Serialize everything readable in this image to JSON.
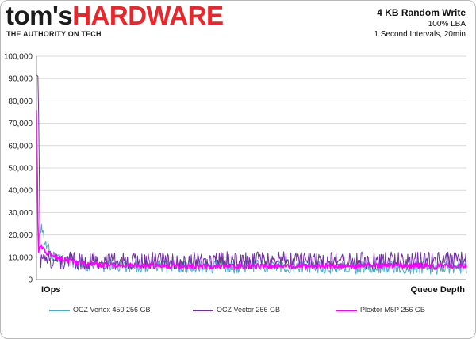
{
  "header": {
    "logo_part1": "tom's",
    "logo_part2": "HARDWARE",
    "tagline": "THE AUTHORITY ON TECH",
    "title": "4 KB Random Write",
    "subtitle1": "100% LBA",
    "subtitle2": "1 Second Intervals, 20min"
  },
  "chart_data": {
    "type": "line",
    "title": "4 KB Random Write",
    "xlabel": "Queue Depth",
    "ylabel": "IOps",
    "x_range_seconds": [
      0,
      1200
    ],
    "ylim": [
      0,
      100000
    ],
    "yticks": [
      "0",
      "10,000",
      "20,000",
      "30,000",
      "40,000",
      "50,000",
      "60,000",
      "70,000",
      "80,000",
      "90,000",
      "100,000"
    ],
    "grid": "horizontal",
    "legend_position": "bottom",
    "series": [
      {
        "name": "OCZ Vertex 450 256 GB",
        "color": "#4bacc6",
        "x": [
          0,
          5,
          10,
          15,
          20,
          30,
          45,
          60,
          90,
          120,
          200,
          300,
          400,
          500,
          600,
          700,
          800,
          900,
          1000,
          1100,
          1200
        ],
        "values": [
          76000,
          16000,
          19000,
          23000,
          18000,
          14000,
          11000,
          9000,
          8000,
          7000,
          6200,
          6000,
          6000,
          5800,
          5800,
          5600,
          5600,
          5500,
          5400,
          5400,
          5400
        ],
        "band": 3000
      },
      {
        "name": "OCZ Vector 256 GB",
        "color": "#7030a0",
        "x": [
          0,
          5,
          10,
          15,
          20,
          30,
          45,
          60,
          90,
          120,
          200,
          300,
          400,
          500,
          600,
          700,
          800,
          900,
          1000,
          1100,
          1200
        ],
        "values": [
          92000,
          91000,
          9000,
          8000,
          8000,
          8200,
          8300,
          8300,
          8400,
          8400,
          8500,
          8500,
          8600,
          8600,
          8500,
          8500,
          8400,
          8500,
          8400,
          8500,
          8600
        ],
        "band": 4000
      },
      {
        "name": "Plextor M5P 256 GB",
        "color": "#ff00ff",
        "x": [
          0,
          5,
          10,
          15,
          20,
          30,
          45,
          60,
          90,
          120,
          200,
          300,
          400,
          500,
          600,
          700,
          800,
          900,
          1000,
          1100,
          1200
        ],
        "values": [
          76000,
          12000,
          14000,
          15000,
          13500,
          12000,
          11000,
          10000,
          8500,
          7500,
          6500,
          6200,
          6000,
          6000,
          6000,
          6000,
          6100,
          6100,
          6100,
          6200,
          6300
        ],
        "band": 1200
      }
    ]
  }
}
